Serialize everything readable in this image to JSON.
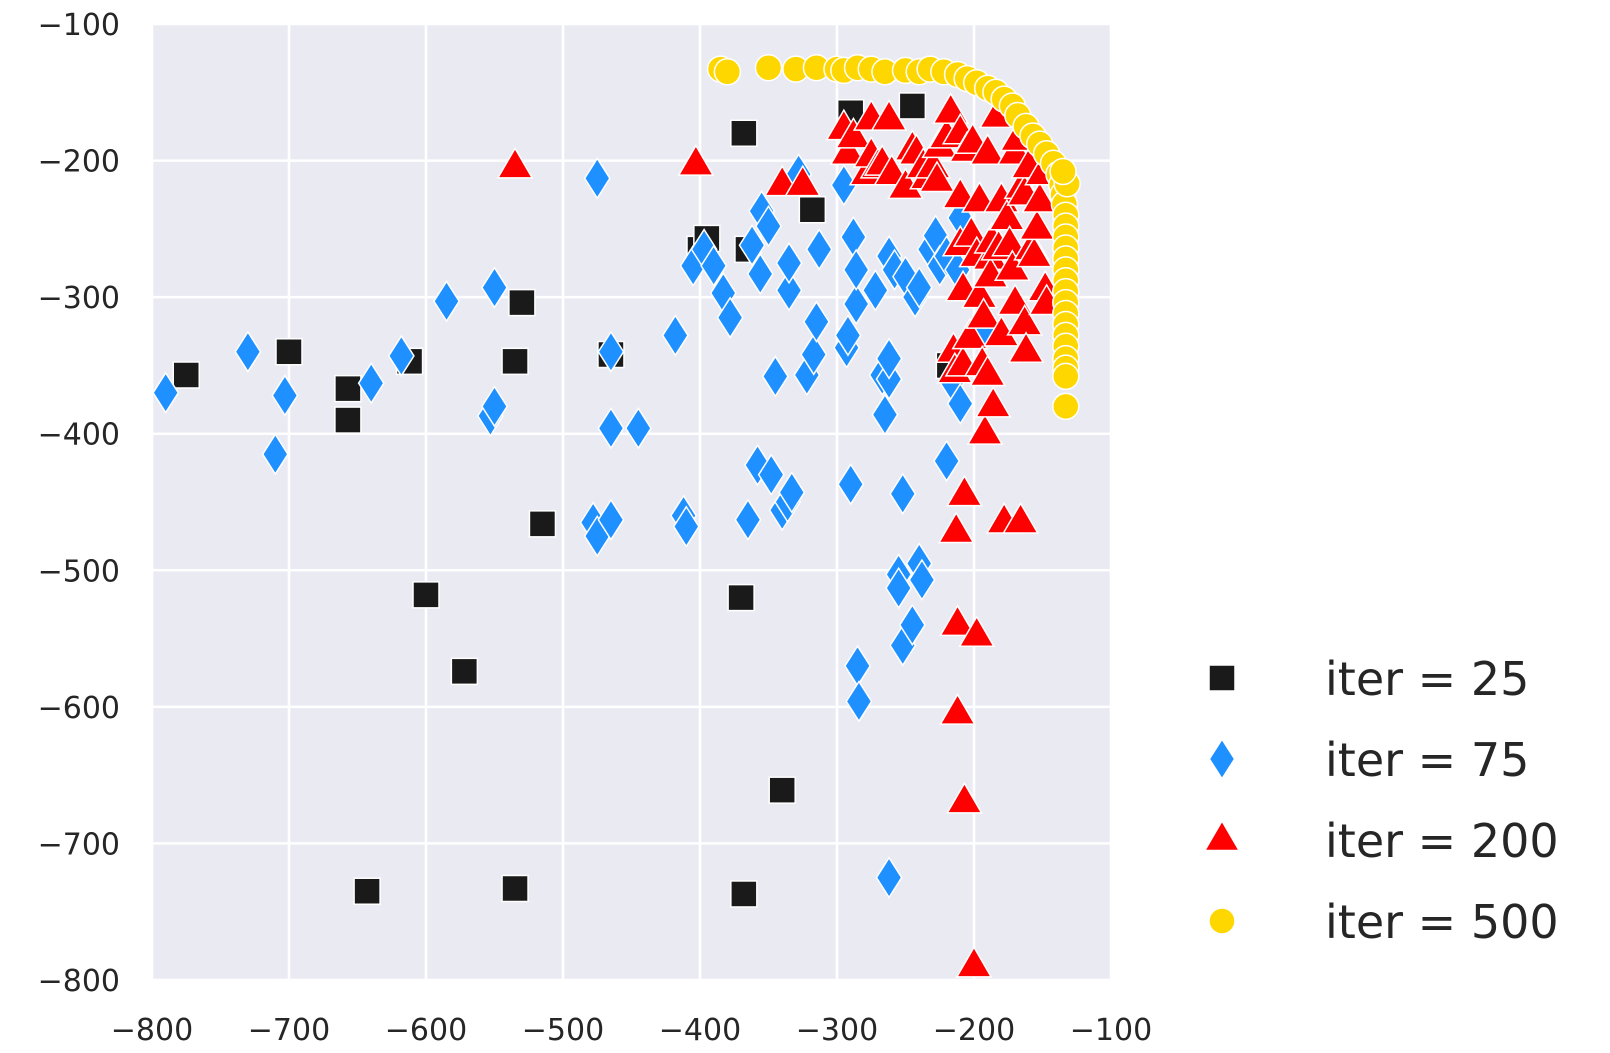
{
  "chart_data": {
    "type": "scatter",
    "title": "",
    "xlabel": "",
    "ylabel": "",
    "xlim": [
      -800,
      -100
    ],
    "ylim": [
      -800,
      -100
    ],
    "xticks": [
      -800,
      -700,
      -600,
      -500,
      -400,
      -300,
      -200,
      -100
    ],
    "yticks": [
      -100,
      -200,
      -300,
      -400,
      -500,
      -600,
      -700,
      -800
    ],
    "xtick_labels": [
      "−800",
      "−700",
      "−600",
      "−500",
      "−400",
      "−300",
      "−200",
      "−100"
    ],
    "ytick_labels": [
      "−100",
      "−200",
      "−300",
      "−400",
      "−500",
      "−600",
      "−700",
      "−800"
    ],
    "grid": true,
    "legend_position": "right",
    "series": [
      {
        "name": "iter = 25",
        "marker": "square",
        "color": "#1a1a1a",
        "points": [
          [
            -775,
            -357
          ],
          [
            -700,
            -340
          ],
          [
            -657,
            -367
          ],
          [
            -657,
            -390
          ],
          [
            -612,
            -347
          ],
          [
            -600,
            -518
          ],
          [
            -572,
            -574
          ],
          [
            -535,
            -347
          ],
          [
            -530,
            -304
          ],
          [
            -515,
            -466
          ],
          [
            -465,
            -342
          ],
          [
            -400,
            -265
          ],
          [
            -395,
            -257
          ],
          [
            -368,
            -180
          ],
          [
            -365,
            -265
          ],
          [
            -370,
            -520
          ],
          [
            -368,
            -737
          ],
          [
            -340,
            -661
          ],
          [
            -318,
            -236
          ],
          [
            -290,
            -165
          ],
          [
            -245,
            -160
          ],
          [
            -218,
            -350
          ],
          [
            -535,
            -733
          ],
          [
            -643,
            -735
          ]
        ]
      },
      {
        "name": "iter = 75",
        "marker": "diamond",
        "color": "#1e90ff",
        "points": [
          [
            -790,
            -370
          ],
          [
            -730,
            -340
          ],
          [
            -710,
            -415
          ],
          [
            -703,
            -372
          ],
          [
            -640,
            -363
          ],
          [
            -618,
            -343
          ],
          [
            -585,
            -303
          ],
          [
            -553,
            -387
          ],
          [
            -550,
            -380
          ],
          [
            -550,
            -293
          ],
          [
            -475,
            -213
          ],
          [
            -478,
            -465
          ],
          [
            -475,
            -475
          ],
          [
            -465,
            -463
          ],
          [
            -465,
            -340
          ],
          [
            -465,
            -396
          ],
          [
            -445,
            -396
          ],
          [
            -418,
            -328
          ],
          [
            -412,
            -460
          ],
          [
            -410,
            -468
          ],
          [
            -405,
            -277
          ],
          [
            -397,
            -265
          ],
          [
            -390,
            -277
          ],
          [
            -383,
            -297
          ],
          [
            -378,
            -315
          ],
          [
            -365,
            -463
          ],
          [
            -362,
            -262
          ],
          [
            -358,
            -423
          ],
          [
            -356,
            -283
          ],
          [
            -355,
            -237
          ],
          [
            -350,
            -248
          ],
          [
            -348,
            -430
          ],
          [
            -345,
            -358
          ],
          [
            -340,
            -456
          ],
          [
            -336,
            -450
          ],
          [
            -335,
            -295
          ],
          [
            -335,
            -275
          ],
          [
            -333,
            -443
          ],
          [
            -328,
            -210
          ],
          [
            -322,
            -357
          ],
          [
            -317,
            -342
          ],
          [
            -315,
            -318
          ],
          [
            -313,
            -265
          ],
          [
            -295,
            -218
          ],
          [
            -293,
            -337
          ],
          [
            -292,
            -328
          ],
          [
            -290,
            -437
          ],
          [
            -288,
            -256
          ],
          [
            -286,
            -305
          ],
          [
            -285,
            -570
          ],
          [
            -284,
            -596
          ],
          [
            -286,
            -280
          ],
          [
            -272,
            -295
          ],
          [
            -267,
            -357
          ],
          [
            -265,
            -386
          ],
          [
            -262,
            -360
          ],
          [
            -262,
            -725
          ],
          [
            -262,
            -270
          ],
          [
            -262,
            -345
          ],
          [
            -258,
            -280
          ],
          [
            -255,
            -503
          ],
          [
            -255,
            -513
          ],
          [
            -252,
            -555
          ],
          [
            -252,
            -444
          ],
          [
            -250,
            -285
          ],
          [
            -245,
            -540
          ],
          [
            -243,
            -300
          ],
          [
            -240,
            -293
          ],
          [
            -240,
            -495
          ],
          [
            -238,
            -507
          ],
          [
            -232,
            -265
          ],
          [
            -228,
            -255
          ],
          [
            -225,
            -277
          ],
          [
            -220,
            -270
          ],
          [
            -220,
            -420
          ],
          [
            -216,
            -362
          ],
          [
            -212,
            -280
          ],
          [
            -210,
            -378
          ],
          [
            -210,
            -242
          ],
          [
            -203,
            -258
          ],
          [
            -192,
            -322
          ],
          [
            -185,
            -270
          ]
        ]
      },
      {
        "name": "iter = 200",
        "marker": "triangle",
        "color": "#ff0000",
        "points": [
          [
            -535,
            -205
          ],
          [
            -403,
            -203
          ],
          [
            -340,
            -218
          ],
          [
            -325,
            -218
          ],
          [
            -295,
            -177
          ],
          [
            -292,
            -195
          ],
          [
            -288,
            -183
          ],
          [
            -278,
            -210
          ],
          [
            -275,
            -170
          ],
          [
            -275,
            -197
          ],
          [
            -270,
            -205
          ],
          [
            -267,
            -203
          ],
          [
            -262,
            -170
          ],
          [
            -260,
            -210
          ],
          [
            -250,
            -220
          ],
          [
            -245,
            -192
          ],
          [
            -242,
            -195
          ],
          [
            -237,
            -205
          ],
          [
            -234,
            -213
          ],
          [
            -230,
            -205
          ],
          [
            -227,
            -215
          ],
          [
            -225,
            -190
          ],
          [
            -220,
            -183
          ],
          [
            -217,
            -165
          ],
          [
            -215,
            -340
          ],
          [
            -214,
            -355
          ],
          [
            -213,
            -472
          ],
          [
            -212,
            -540
          ],
          [
            -212,
            -605
          ],
          [
            -210,
            -180
          ],
          [
            -210,
            -227
          ],
          [
            -210,
            -262
          ],
          [
            -208,
            -295
          ],
          [
            -208,
            -350
          ],
          [
            -207,
            -445
          ],
          [
            -207,
            -670
          ],
          [
            -205,
            -193
          ],
          [
            -203,
            -330
          ],
          [
            -202,
            -255
          ],
          [
            -201,
            -187
          ],
          [
            -200,
            -790
          ],
          [
            -198,
            -270
          ],
          [
            -198,
            -548
          ],
          [
            -196,
            -230
          ],
          [
            -196,
            -300
          ],
          [
            -194,
            -350
          ],
          [
            -193,
            -315
          ],
          [
            -192,
            -400
          ],
          [
            -190,
            -195
          ],
          [
            -190,
            -357
          ],
          [
            -188,
            -272
          ],
          [
            -188,
            -285
          ],
          [
            -187,
            -260
          ],
          [
            -186,
            -380
          ],
          [
            -183,
            -168
          ],
          [
            -182,
            -265
          ],
          [
            -180,
            -230
          ],
          [
            -180,
            -328
          ],
          [
            -178,
            -465
          ],
          [
            -176,
            -243
          ],
          [
            -174,
            -262
          ],
          [
            -172,
            -280
          ],
          [
            -170,
            -195
          ],
          [
            -170,
            -305
          ],
          [
            -168,
            -185
          ],
          [
            -166,
            -465
          ],
          [
            -165,
            -220
          ],
          [
            -163,
            -225
          ],
          [
            -163,
            -320
          ],
          [
            -162,
            -340
          ],
          [
            -160,
            -205
          ],
          [
            -158,
            -265
          ],
          [
            -156,
            -270
          ],
          [
            -154,
            -250
          ],
          [
            -152,
            -230
          ],
          [
            -150,
            -210
          ],
          [
            -148,
            -295
          ],
          [
            -147,
            -305
          ]
        ]
      },
      {
        "name": "iter = 500",
        "marker": "circle",
        "color": "#ffd700",
        "points": [
          [
            -385,
            -133
          ],
          [
            -380,
            -135
          ],
          [
            -350,
            -132
          ],
          [
            -330,
            -133
          ],
          [
            -315,
            -132
          ],
          [
            -300,
            -133
          ],
          [
            -295,
            -134
          ],
          [
            -285,
            -132
          ],
          [
            -275,
            -133
          ],
          [
            -265,
            -135
          ],
          [
            -250,
            -134
          ],
          [
            -240,
            -135
          ],
          [
            -232,
            -133
          ],
          [
            -222,
            -135
          ],
          [
            -212,
            -137
          ],
          [
            -205,
            -140
          ],
          [
            -198,
            -143
          ],
          [
            -190,
            -147
          ],
          [
            -184,
            -150
          ],
          [
            -178,
            -155
          ],
          [
            -172,
            -160
          ],
          [
            -168,
            -167
          ],
          [
            -162,
            -175
          ],
          [
            -157,
            -182
          ],
          [
            -152,
            -188
          ],
          [
            -147,
            -195
          ],
          [
            -142,
            -202
          ],
          [
            -138,
            -210
          ],
          [
            -136,
            -218
          ],
          [
            -135,
            -225
          ],
          [
            -134,
            -232
          ],
          [
            -133,
            -240
          ],
          [
            -133,
            -248
          ],
          [
            -133,
            -256
          ],
          [
            -133,
            -264
          ],
          [
            -133,
            -272
          ],
          [
            -133,
            -280
          ],
          [
            -133,
            -288
          ],
          [
            -133,
            -296
          ],
          [
            -133,
            -304
          ],
          [
            -133,
            -312
          ],
          [
            -133,
            -320
          ],
          [
            -133,
            -328
          ],
          [
            -133,
            -336
          ],
          [
            -133,
            -345
          ],
          [
            -133,
            -352
          ],
          [
            -133,
            -358
          ],
          [
            -133,
            -380
          ],
          [
            -132,
            -217
          ],
          [
            -135,
            -208
          ]
        ]
      }
    ]
  }
}
